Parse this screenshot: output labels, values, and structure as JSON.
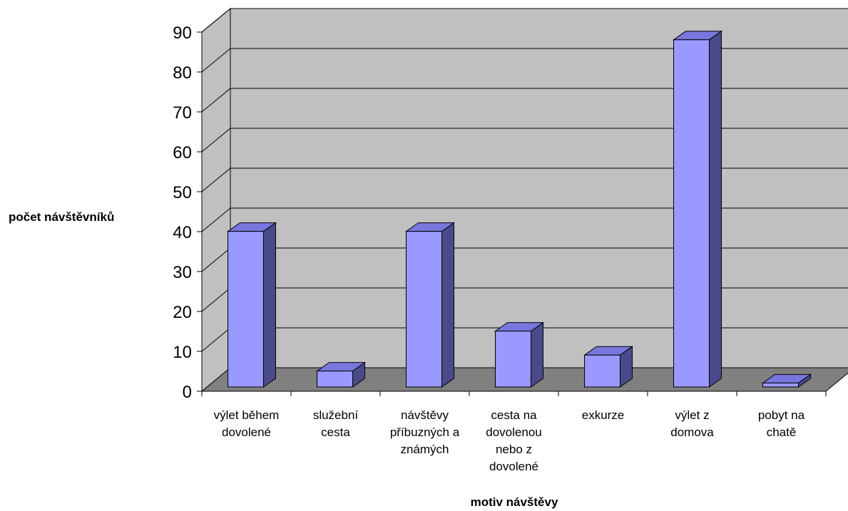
{
  "chart_data": {
    "type": "bar",
    "ylabel": "počet návštěvníků",
    "xlabel": "motiv návštěvy",
    "ylim": [
      0,
      90
    ],
    "yticks": [
      0,
      10,
      20,
      30,
      40,
      50,
      60,
      70,
      80,
      90
    ],
    "grid": true,
    "three_d": true,
    "categories": [
      [
        "výlet během",
        "dovolené"
      ],
      [
        "služební",
        "cesta"
      ],
      [
        "návštěvy",
        "příbuzných a",
        "známých"
      ],
      [
        "cesta na",
        "dovolenou",
        "nebo z",
        "dovolené"
      ],
      [
        "exkurze"
      ],
      [
        "výlet z",
        "domova"
      ],
      [
        "pobyt na",
        "chatě"
      ]
    ],
    "values": [
      39,
      4,
      39,
      14,
      8,
      87,
      1
    ],
    "colors": {
      "bar_front": "#9999ff",
      "bar_top": "#7777dd",
      "bar_side": "#4a4a8a",
      "wall": "#c0c0c0",
      "floor": "#808080"
    }
  }
}
